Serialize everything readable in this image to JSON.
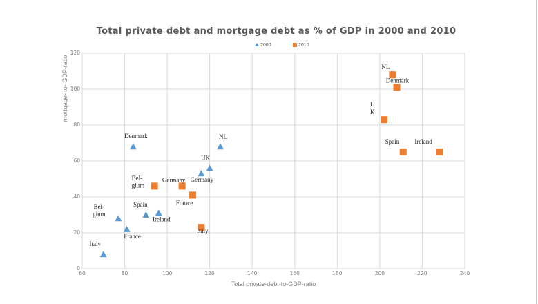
{
  "chart_data": {
    "type": "scatter",
    "title": "Total private debt and mortgage debt as % of GDP in 2000 and 2010",
    "xlabel": "Total private-debt-to-GDP-ratio",
    "ylabel": "mortgage- to- GDP-ratio",
    "xlim": [
      60,
      240
    ],
    "ylim": [
      0,
      120
    ],
    "xticks": [
      60,
      80,
      100,
      120,
      140,
      160,
      180,
      200,
      220,
      240
    ],
    "yticks": [
      0,
      20,
      40,
      60,
      80,
      100,
      120
    ],
    "grid": true,
    "legend_position": "top-center",
    "series": [
      {
        "name": "2000",
        "marker": "triangle",
        "color": "#5b9bd5",
        "points": [
          {
            "label": "Italy",
            "x": 70,
            "y": 8
          },
          {
            "label": "Bel-\ngium",
            "x": 77,
            "y": 28
          },
          {
            "label": "France",
            "x": 81,
            "y": 22
          },
          {
            "label": "Spain",
            "x": 90,
            "y": 30
          },
          {
            "label": "Ireland",
            "x": 96,
            "y": 31
          },
          {
            "label": "Denmark",
            "x": 84,
            "y": 68
          },
          {
            "label": "Germany",
            "x": 116,
            "y": 53
          },
          {
            "label": "UK",
            "x": 120,
            "y": 56
          },
          {
            "label": "NL",
            "x": 125,
            "y": 68
          }
        ]
      },
      {
        "name": "2010",
        "marker": "square",
        "color": "#ed7d31",
        "points": [
          {
            "label": "Bel-\ngium",
            "x": 94,
            "y": 46
          },
          {
            "label": "Germany",
            "x": 107,
            "y": 46
          },
          {
            "label": "France",
            "x": 112,
            "y": 41
          },
          {
            "label": "Italy",
            "x": 116,
            "y": 23
          },
          {
            "label": "U\nK",
            "x": 202,
            "y": 83
          },
          {
            "label": "NL",
            "x": 206,
            "y": 108
          },
          {
            "label": "Denmark",
            "x": 208,
            "y": 101
          },
          {
            "label": "Spain",
            "x": 211,
            "y": 65
          },
          {
            "label": "Ireland",
            "x": 228,
            "y": 65
          }
        ]
      }
    ]
  }
}
